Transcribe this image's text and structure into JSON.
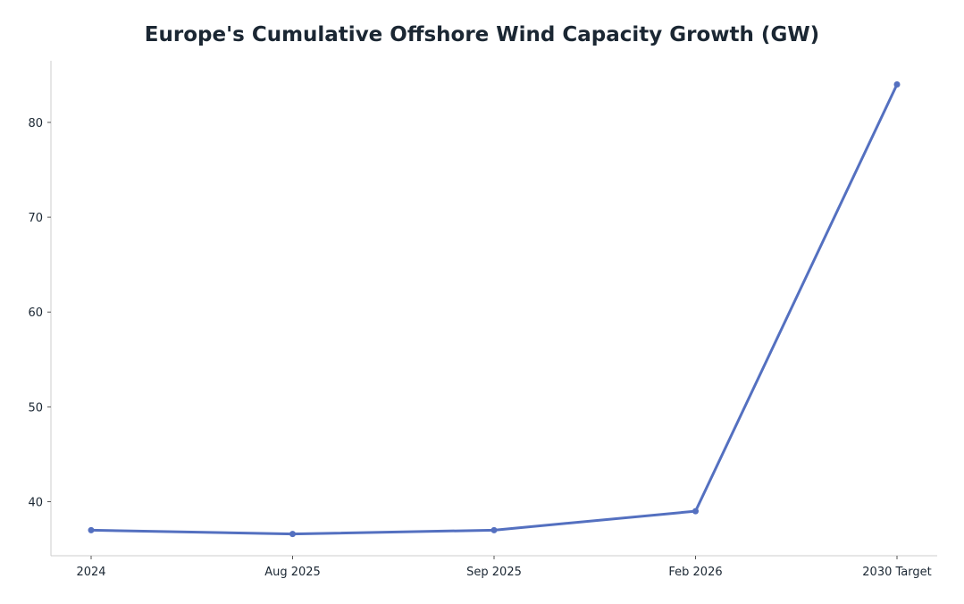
{
  "chart_data": {
    "type": "line",
    "title": "Europe's Cumulative Offshore Wind Capacity Growth (GW)",
    "xlabel": "",
    "ylabel": "",
    "categories": [
      "2024",
      "Aug 2025",
      "Sep 2025",
      "Feb 2026",
      "2030 Target"
    ],
    "series": [
      {
        "values": [
          37.0,
          36.6,
          37.0,
          39.0,
          84.0
        ],
        "color": "#5470c0"
      }
    ],
    "yticks": [
      40,
      50,
      60,
      70,
      80
    ],
    "ylim": [
      34.3,
      86.5
    ],
    "grid": false,
    "legend": "none",
    "markers": true
  }
}
